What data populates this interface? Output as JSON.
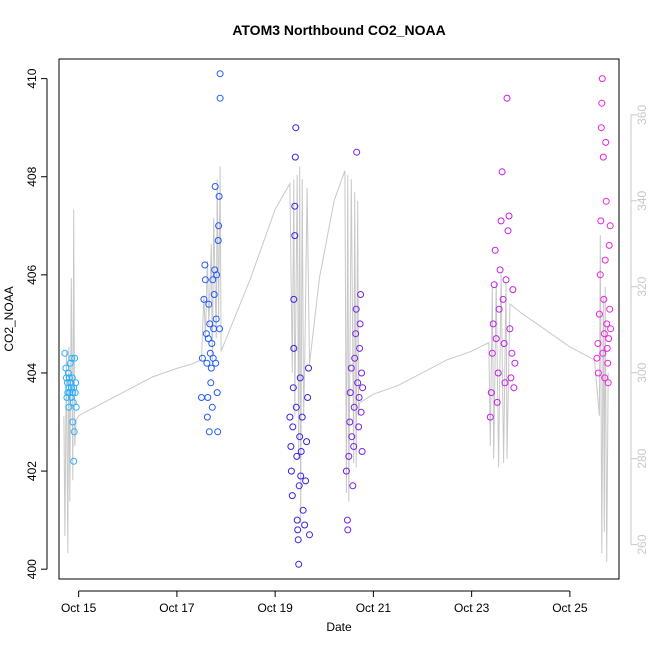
{
  "chart_data": {
    "type": "scatter",
    "title": "ATOM3 Northbound CO2_NOAA",
    "xlabel": "Date",
    "ylabel": "CO2_NOAA",
    "xlim": [
      14.6,
      26.0
    ],
    "ylim": [
      399.8,
      410.4
    ],
    "yticks": [
      400,
      402,
      404,
      406,
      408,
      410
    ],
    "xticks": [
      {
        "value": 15,
        "label": "Oct 15"
      },
      {
        "value": 17,
        "label": "Oct 17"
      },
      {
        "value": 19,
        "label": "Oct 19"
      },
      {
        "value": 21,
        "label": "Oct 21"
      },
      {
        "value": 23,
        "label": "Oct 23"
      },
      {
        "value": 25,
        "label": "Oct 25"
      }
    ],
    "y2lim": [
      252,
      373
    ],
    "y2ticks": [
      260,
      280,
      300,
      320,
      340,
      360
    ],
    "grid": false,
    "series": [
      {
        "color": "#2ab0ff",
        "points": [
          [
            14.72,
            404.4
          ],
          [
            14.74,
            404.1
          ],
          [
            14.75,
            403.9
          ],
          [
            14.76,
            403.5
          ],
          [
            14.77,
            403.8
          ],
          [
            14.78,
            403.6
          ],
          [
            14.79,
            404.0
          ],
          [
            14.8,
            403.7
          ],
          [
            14.8,
            403.3
          ],
          [
            14.81,
            403.9
          ],
          [
            14.82,
            403.6
          ],
          [
            14.83,
            404.2
          ],
          [
            14.84,
            403.8
          ],
          [
            14.85,
            403.5
          ],
          [
            14.85,
            403.7
          ],
          [
            14.86,
            404.3
          ],
          [
            14.87,
            403.9
          ],
          [
            14.88,
            403.6
          ],
          [
            14.88,
            403.0
          ],
          [
            14.89,
            403.4
          ],
          [
            14.9,
            403.7
          ],
          [
            14.9,
            402.2
          ],
          [
            14.91,
            402.8
          ],
          [
            14.92,
            404.3
          ],
          [
            14.93,
            403.6
          ],
          [
            14.94,
            403.8
          ],
          [
            14.95,
            403.3
          ]
        ]
      },
      {
        "color": "#1f5bff",
        "points": [
          [
            17.5,
            403.5
          ],
          [
            17.52,
            404.3
          ],
          [
            17.55,
            405.5
          ],
          [
            17.57,
            406.2
          ],
          [
            17.58,
            405.9
          ],
          [
            17.6,
            404.8
          ],
          [
            17.61,
            404.2
          ],
          [
            17.62,
            403.1
          ],
          [
            17.63,
            403.5
          ],
          [
            17.64,
            404.7
          ],
          [
            17.65,
            405.4
          ],
          [
            17.66,
            402.8
          ],
          [
            17.67,
            405.0
          ],
          [
            17.68,
            404.4
          ],
          [
            17.69,
            403.8
          ],
          [
            17.7,
            404.1
          ],
          [
            17.71,
            404.6
          ],
          [
            17.72,
            403.3
          ],
          [
            17.73,
            405.9
          ],
          [
            17.74,
            404.3
          ],
          [
            17.75,
            404.9
          ],
          [
            17.76,
            405.6
          ],
          [
            17.77,
            406.1
          ],
          [
            17.78,
            407.8
          ],
          [
            17.79,
            404.2
          ],
          [
            17.8,
            405.1
          ],
          [
            17.81,
            406.0
          ],
          [
            17.82,
            403.6
          ],
          [
            17.83,
            402.8
          ],
          [
            17.84,
            406.7
          ],
          [
            17.85,
            407.0
          ],
          [
            17.86,
            407.6
          ],
          [
            17.87,
            404.9
          ],
          [
            17.88,
            409.6
          ],
          [
            17.88,
            410.1
          ]
        ]
      },
      {
        "color": "#3a22e6",
        "points": [
          [
            19.3,
            403.1
          ],
          [
            19.32,
            402.5
          ],
          [
            19.33,
            402.0
          ],
          [
            19.35,
            401.5
          ],
          [
            19.36,
            402.9
          ],
          [
            19.37,
            403.7
          ],
          [
            19.38,
            404.5
          ],
          [
            19.38,
            405.5
          ],
          [
            19.4,
            406.8
          ],
          [
            19.4,
            407.4
          ],
          [
            19.41,
            408.4
          ],
          [
            19.42,
            409.0
          ],
          [
            19.43,
            403.3
          ],
          [
            19.44,
            402.3
          ],
          [
            19.45,
            401.0
          ],
          [
            19.46,
            400.8
          ],
          [
            19.47,
            400.6
          ],
          [
            19.48,
            400.1
          ],
          [
            19.49,
            401.7
          ],
          [
            19.5,
            402.7
          ],
          [
            19.51,
            403.9
          ],
          [
            19.52,
            401.9
          ],
          [
            19.53,
            402.4
          ],
          [
            19.55,
            403.1
          ],
          [
            19.57,
            401.2
          ],
          [
            19.6,
            400.9
          ],
          [
            19.62,
            401.8
          ],
          [
            19.64,
            402.6
          ],
          [
            19.66,
            403.5
          ],
          [
            19.68,
            404.1
          ],
          [
            19.7,
            400.7
          ]
        ]
      },
      {
        "color": "#7a1fe6",
        "points": [
          [
            20.45,
            402.0
          ],
          [
            20.47,
            401.0
          ],
          [
            20.48,
            400.8
          ],
          [
            20.5,
            402.3
          ],
          [
            20.52,
            403.0
          ],
          [
            20.53,
            403.6
          ],
          [
            20.55,
            404.1
          ],
          [
            20.56,
            402.7
          ],
          [
            20.58,
            401.7
          ],
          [
            20.6,
            402.5
          ],
          [
            20.61,
            403.3
          ],
          [
            20.62,
            404.3
          ],
          [
            20.64,
            404.8
          ],
          [
            20.65,
            405.3
          ],
          [
            20.66,
            408.5
          ],
          [
            20.68,
            403.8
          ],
          [
            20.7,
            402.9
          ],
          [
            20.71,
            403.5
          ],
          [
            20.72,
            404.5
          ],
          [
            20.73,
            405.0
          ],
          [
            20.74,
            405.6
          ],
          [
            20.75,
            403.2
          ],
          [
            20.76,
            404.0
          ],
          [
            20.77,
            402.4
          ],
          [
            20.78,
            403.7
          ]
        ]
      },
      {
        "color": "#c21fe6",
        "points": [
          [
            23.38,
            403.1
          ],
          [
            23.4,
            403.6
          ],
          [
            23.42,
            404.4
          ],
          [
            23.44,
            405.0
          ],
          [
            23.46,
            405.8
          ],
          [
            23.48,
            406.5
          ],
          [
            23.5,
            404.7
          ],
          [
            23.52,
            403.4
          ],
          [
            23.54,
            404.0
          ],
          [
            23.56,
            405.3
          ],
          [
            23.58,
            406.1
          ],
          [
            23.6,
            407.1
          ],
          [
            23.62,
            408.1
          ],
          [
            23.64,
            405.5
          ],
          [
            23.66,
            404.6
          ],
          [
            23.68,
            403.8
          ],
          [
            23.7,
            405.9
          ],
          [
            23.72,
            409.6
          ],
          [
            23.74,
            406.9
          ],
          [
            23.76,
            407.2
          ],
          [
            23.78,
            404.9
          ],
          [
            23.8,
            403.9
          ],
          [
            23.82,
            404.4
          ],
          [
            23.84,
            405.7
          ],
          [
            23.86,
            403.7
          ],
          [
            23.88,
            404.2
          ]
        ]
      },
      {
        "color": "#ee22e6",
        "points": [
          [
            25.55,
            404.3
          ],
          [
            25.57,
            404.6
          ],
          [
            25.58,
            404.0
          ],
          [
            25.6,
            405.2
          ],
          [
            25.62,
            406.0
          ],
          [
            25.63,
            407.1
          ],
          [
            25.64,
            409.0
          ],
          [
            25.65,
            409.5
          ],
          [
            25.66,
            410.0
          ],
          [
            25.67,
            404.4
          ],
          [
            25.68,
            408.4
          ],
          [
            25.69,
            405.5
          ],
          [
            25.7,
            404.8
          ],
          [
            25.71,
            403.9
          ],
          [
            25.72,
            406.3
          ],
          [
            25.73,
            408.7
          ],
          [
            25.74,
            407.5
          ],
          [
            25.75,
            405.0
          ],
          [
            25.76,
            404.5
          ],
          [
            25.77,
            404.2
          ],
          [
            25.78,
            403.8
          ],
          [
            25.79,
            404.7
          ],
          [
            25.8,
            406.6
          ],
          [
            25.81,
            405.3
          ],
          [
            25.82,
            407.0
          ],
          [
            25.83,
            404.9
          ]
        ]
      }
    ],
    "line2": {
      "color": "#c8c8c8",
      "points": [
        [
          14.7,
          290
        ],
        [
          14.72,
          262
        ],
        [
          14.75,
          305
        ],
        [
          14.78,
          258
        ],
        [
          14.8,
          306
        ],
        [
          14.82,
          270
        ],
        [
          14.85,
          322
        ],
        [
          14.88,
          275
        ],
        [
          14.9,
          338
        ],
        [
          14.92,
          283
        ],
        [
          14.95,
          289
        ],
        [
          15.0,
          290
        ],
        [
          15.5,
          293
        ],
        [
          16.0,
          296
        ],
        [
          16.5,
          299
        ],
        [
          17.0,
          301
        ],
        [
          17.3,
          302
        ],
        [
          17.5,
          303
        ],
        [
          17.55,
          318
        ],
        [
          17.58,
          308
        ],
        [
          17.62,
          326
        ],
        [
          17.65,
          311
        ],
        [
          17.7,
          330
        ],
        [
          17.72,
          302
        ],
        [
          17.75,
          336
        ],
        [
          17.8,
          308
        ],
        [
          17.82,
          345
        ],
        [
          17.85,
          313
        ],
        [
          17.88,
          348
        ],
        [
          17.9,
          305
        ],
        [
          18.5,
          322
        ],
        [
          19.0,
          338
        ],
        [
          19.3,
          344
        ],
        [
          19.35,
          300
        ],
        [
          19.38,
          345
        ],
        [
          19.4,
          290
        ],
        [
          19.45,
          346
        ],
        [
          19.48,
          280
        ],
        [
          19.5,
          348
        ],
        [
          19.52,
          265
        ],
        [
          19.55,
          345
        ],
        [
          19.58,
          290
        ],
        [
          19.6,
          300
        ],
        [
          19.65,
          343
        ],
        [
          19.7,
          302
        ],
        [
          19.9,
          322
        ],
        [
          20.2,
          340
        ],
        [
          20.42,
          347
        ],
        [
          20.45,
          272
        ],
        [
          20.48,
          346
        ],
        [
          20.5,
          270
        ],
        [
          20.55,
          345
        ],
        [
          20.6,
          279
        ],
        [
          20.62,
          342
        ],
        [
          20.65,
          278
        ],
        [
          20.68,
          340
        ],
        [
          20.7,
          290
        ],
        [
          20.72,
          293
        ],
        [
          21.0,
          295
        ],
        [
          21.5,
          297
        ],
        [
          22.0,
          300
        ],
        [
          22.5,
          303
        ],
        [
          23.0,
          305
        ],
        [
          23.35,
          307
        ],
        [
          23.38,
          283
        ],
        [
          23.42,
          320
        ],
        [
          23.45,
          280
        ],
        [
          23.5,
          321
        ],
        [
          23.55,
          278
        ],
        [
          23.6,
          323
        ],
        [
          23.65,
          279
        ],
        [
          23.7,
          321
        ],
        [
          23.72,
          280
        ],
        [
          23.78,
          316
        ],
        [
          24.0,
          314
        ],
        [
          24.5,
          310
        ],
        [
          25.0,
          306
        ],
        [
          25.5,
          303
        ],
        [
          25.6,
          290
        ],
        [
          25.62,
          332
        ],
        [
          25.65,
          258
        ],
        [
          25.68,
          318
        ],
        [
          25.7,
          263
        ],
        [
          25.72,
          320
        ],
        [
          25.75,
          256
        ],
        [
          25.78,
          300
        ]
      ]
    }
  }
}
